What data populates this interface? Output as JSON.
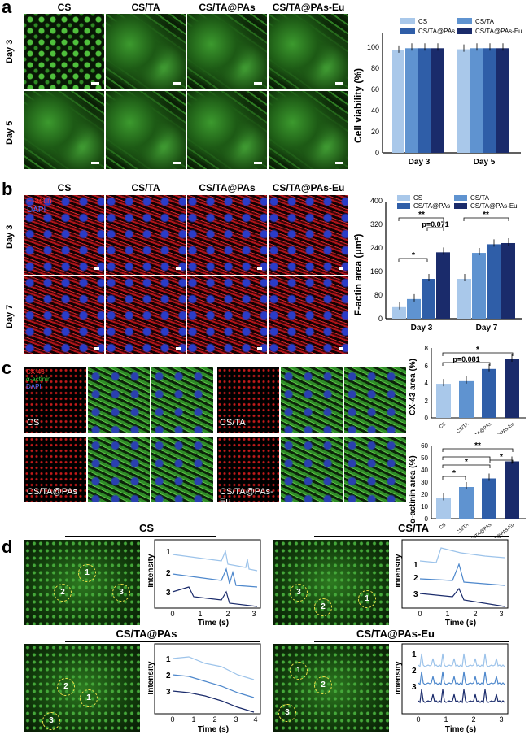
{
  "panels": {
    "a": "a",
    "b": "b",
    "c": "c",
    "d": "d"
  },
  "a": {
    "groups": [
      "CS",
      "CS/TA",
      "CS/TA@PAs",
      "CS/TA@PAs-Eu"
    ],
    "rows": [
      "Day 3",
      "Day 5"
    ],
    "chart": {
      "ylabel": "Cell viability (%)",
      "ticks": [
        "0",
        "20",
        "40",
        "60",
        "80",
        "100"
      ],
      "categories": [
        "Day 3",
        "Day 5"
      ],
      "legend": [
        "CS",
        "CS/TA",
        "CS/TA@PAs",
        "CS/TA@PAs-Eu"
      ]
    }
  },
  "b": {
    "groups": [
      "CS",
      "CS/TA",
      "CS/TA@PAs",
      "CS/TA@PAs-Eu"
    ],
    "rows": [
      "Day 3",
      "Day 7"
    ],
    "stain1": "F-actin",
    "stain2": "DAPI",
    "chart": {
      "ylabel": "F-actin area (μm²)",
      "ticks": [
        "0",
        "80",
        "160",
        "240",
        "320",
        "400"
      ],
      "categories": [
        "Day 3",
        "Day 7"
      ],
      "legend": [
        "CS",
        "CS/TA",
        "CS/TA@PAs",
        "CS/TA@PAs-Eu"
      ],
      "annot": [
        "**",
        "p=0.071",
        "*",
        "**"
      ]
    }
  },
  "c": {
    "stains": [
      "CX-43",
      "α-actinin",
      "DAPI"
    ],
    "groups": [
      "CS",
      "CS/TA",
      "CS/TA@PAs",
      "CS/TA@PAs-Eu"
    ],
    "chart1": {
      "ylabel": "CX-43 area (%)",
      "ticks": [
        "0",
        "2",
        "4",
        "6",
        "8"
      ],
      "annot": [
        "*",
        "p=0.081"
      ]
    },
    "chart2": {
      "ylabel": "α-actinin area (%)",
      "ticks": [
        "0",
        "10",
        "20",
        "30",
        "40",
        "50",
        "60"
      ],
      "annot": [
        "**",
        "*",
        "*",
        "*"
      ]
    },
    "cats": [
      "CS",
      "CS/TA",
      "CS/TA@PAs",
      "CS/TA@PAs-Eu"
    ]
  },
  "d": {
    "groups": [
      "CS",
      "CS/TA",
      "CS/TA@PAs",
      "CS/TA@PAs-Eu"
    ],
    "ylabel": "Intensity",
    "xlabel": "Time (s)",
    "traces": [
      "1",
      "2",
      "3"
    ],
    "ticks_a": [
      "0",
      "1",
      "2",
      "3"
    ],
    "ticks_b": [
      "0",
      "1",
      "2",
      "3",
      "4"
    ]
  },
  "colors": {
    "c1": "#a9c8ea",
    "c2": "#5f93d0",
    "c3": "#2f5ea8",
    "c4": "#1a2b6b"
  },
  "chart_data": [
    {
      "type": "bar",
      "categories": [
        "Day 3",
        "Day 5"
      ],
      "series": [
        {
          "name": "CS",
          "values": [
            97,
            98
          ]
        },
        {
          "name": "CS/TA",
          "values": [
            99,
            99
          ]
        },
        {
          "name": "CS/TA@PAs",
          "values": [
            99,
            99
          ]
        },
        {
          "name": "CS/TA@PAs-Eu",
          "values": [
            99,
            99
          ]
        }
      ],
      "ylabel": "Cell viability (%)",
      "ylim": [
        0,
        100
      ]
    },
    {
      "type": "bar",
      "categories": [
        "Day 3",
        "Day 7"
      ],
      "series": [
        {
          "name": "CS",
          "values": [
            40,
            138
          ]
        },
        {
          "name": "CS/TA",
          "values": [
            68,
            228
          ]
        },
        {
          "name": "CS/TA@PAs",
          "values": [
            138,
            258
          ]
        },
        {
          "name": "CS/TA@PAs-Eu",
          "values": [
            230,
            262
          ]
        }
      ],
      "ylabel": "F-actin area (μm²)",
      "ylim": [
        0,
        400
      ]
    },
    {
      "type": "bar",
      "categories": [
        "CS",
        "CS/TA",
        "CS/TA@PAs",
        "CS/TA@PAs-Eu"
      ],
      "values": [
        3.9,
        4.2,
        5.6,
        6.7
      ],
      "ylabel": "CX-43 area (%)",
      "ylim": [
        0,
        8
      ]
    },
    {
      "type": "bar",
      "categories": [
        "CS",
        "CS/TA",
        "CS/TA@PAs",
        "CS/TA@PAs-Eu"
      ],
      "values": [
        17,
        26,
        33,
        47
      ],
      "ylabel": "α-actinin area (%)",
      "ylim": [
        0,
        60
      ]
    }
  ]
}
